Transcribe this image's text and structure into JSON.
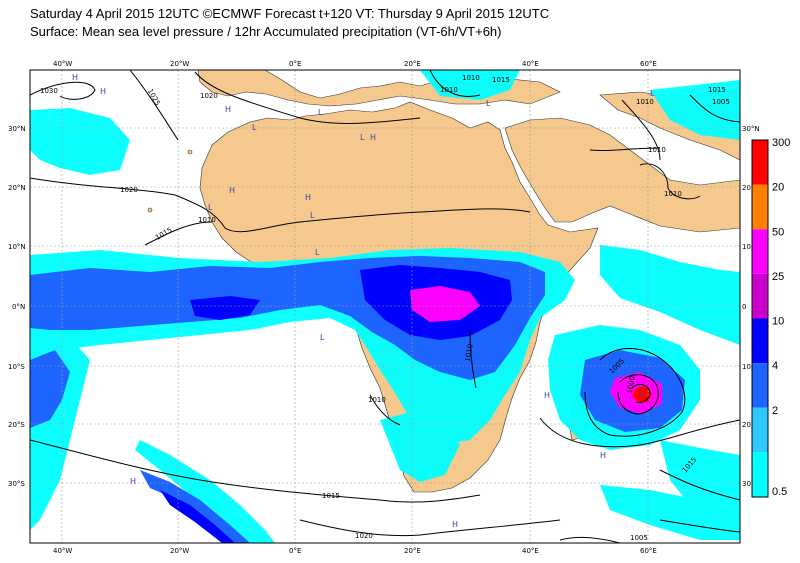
{
  "header": {
    "line1": "Saturday 4 April 2015 12UTC ©ECMWF Forecast t+120 VT: Thursday 9 April 2015 12UTC",
    "line2": "Surface: Mean sea level pressure / 12hr Accumulated precipitation (VT-6h/VT+6h)"
  },
  "axes": {
    "top_lon": [
      "40°W",
      "20°W",
      "0°E",
      "20°E",
      "40°E",
      "60°E"
    ],
    "bottom_lon": [
      "40°W",
      "20°W",
      "0°E",
      "20°E",
      "40°E",
      "60°E"
    ],
    "left_lat": [
      "30°N",
      "20°N",
      "10°N",
      "0°N",
      "10°S",
      "20°S",
      "30°S"
    ],
    "right_lat": [
      "30°N",
      "20",
      "10",
      "0",
      "10",
      "20",
      "30"
    ]
  },
  "isobars": [
    "1030",
    "1025",
    "1020",
    "1020",
    "1015",
    "1010",
    "1010",
    "1010",
    "1015",
    "1010",
    "1015",
    "1010",
    "1005",
    "1000",
    "1005",
    "1010",
    "1010",
    "1015",
    "1015",
    "1020",
    "1010",
    "1005"
  ],
  "pressure_centres": [
    "H",
    "H",
    "H",
    "L",
    "L",
    "L",
    "H",
    "L",
    "L",
    "L",
    "H",
    "H",
    "L",
    "L",
    "L",
    "H",
    "H",
    "H",
    "H",
    "L"
  ],
  "legend": {
    "levels": [
      "300",
      "20",
      "50",
      "25",
      "10",
      "4",
      "2",
      "0.5"
    ],
    "colors": [
      "#ff0000",
      "#ff8000",
      "#ff00ff",
      "#cc00cc",
      "#0000ff",
      "#1e64ff",
      "#2ec8ff",
      "#00ffff"
    ]
  },
  "colors": {
    "land": "#f5c98d",
    "ocean": "#ffffff",
    "isobar": "#000000",
    "grid": "#9a9a9a"
  }
}
